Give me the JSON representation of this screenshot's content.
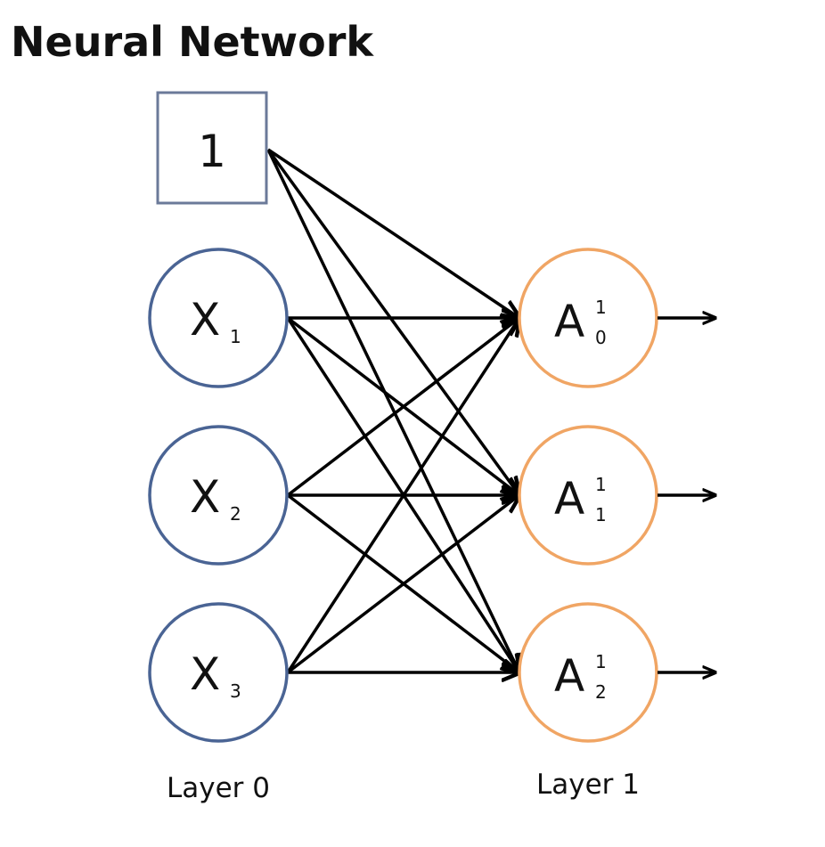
{
  "title": "Neural Network",
  "colors": {
    "input_stroke": "#4a6494",
    "bias_stroke": "#6b7a99",
    "output_stroke": "#f0a564",
    "edge": "#000000",
    "text": "#111111"
  },
  "bias": {
    "label": "1"
  },
  "inputs": [
    {
      "label": "X",
      "sub": "1"
    },
    {
      "label": "X",
      "sub": "2"
    },
    {
      "label": "X",
      "sub": "3"
    }
  ],
  "outputs": [
    {
      "label": "A",
      "sup": "1",
      "sub": "0"
    },
    {
      "label": "A",
      "sup": "1",
      "sub": "1"
    },
    {
      "label": "A",
      "sup": "1",
      "sub": "2"
    }
  ],
  "layers": {
    "layer0": "Layer 0",
    "layer1": "Layer 1"
  }
}
